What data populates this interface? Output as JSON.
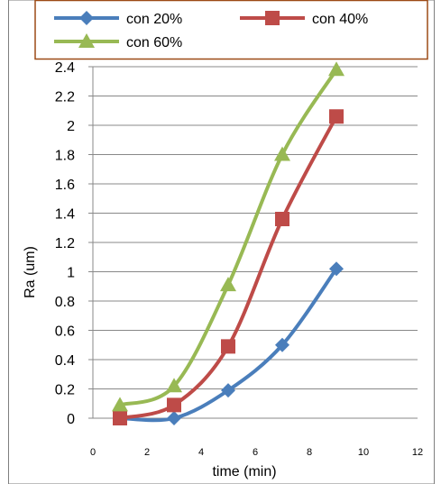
{
  "chart_data": {
    "type": "line",
    "xlabel": "time (min)",
    "ylabel": "Ra (um)",
    "xlim": [
      0,
      12
    ],
    "ylim": [
      0,
      2.4
    ],
    "x_ticks": [
      "0",
      "2",
      "4",
      "6",
      "8",
      "10",
      "12"
    ],
    "y_ticks": [
      "0",
      "0.2",
      "0.4",
      "0.6",
      "0.8",
      "1",
      "1.2",
      "1.4",
      "1.6",
      "1.8",
      "2",
      "2.2",
      "2.4"
    ],
    "grid": "horizontal",
    "legend_position": "top",
    "series": [
      {
        "name": "con 20%",
        "color": "#4a7ebb",
        "marker": "diamond",
        "x": [
          1,
          3,
          5,
          7,
          9
        ],
        "y": [
          0,
          0,
          0.19,
          0.5,
          1.02
        ]
      },
      {
        "name": "con 40%",
        "color": "#be4b48",
        "marker": "square",
        "x": [
          1,
          3,
          5,
          7,
          9
        ],
        "y": [
          0,
          0.09,
          0.49,
          1.36,
          2.06
        ]
      },
      {
        "name": "con 60%",
        "color": "#98b954",
        "marker": "triangle",
        "x": [
          1,
          3,
          5,
          7,
          9
        ],
        "y": [
          0.09,
          0.22,
          0.91,
          1.8,
          2.38
        ]
      }
    ]
  }
}
